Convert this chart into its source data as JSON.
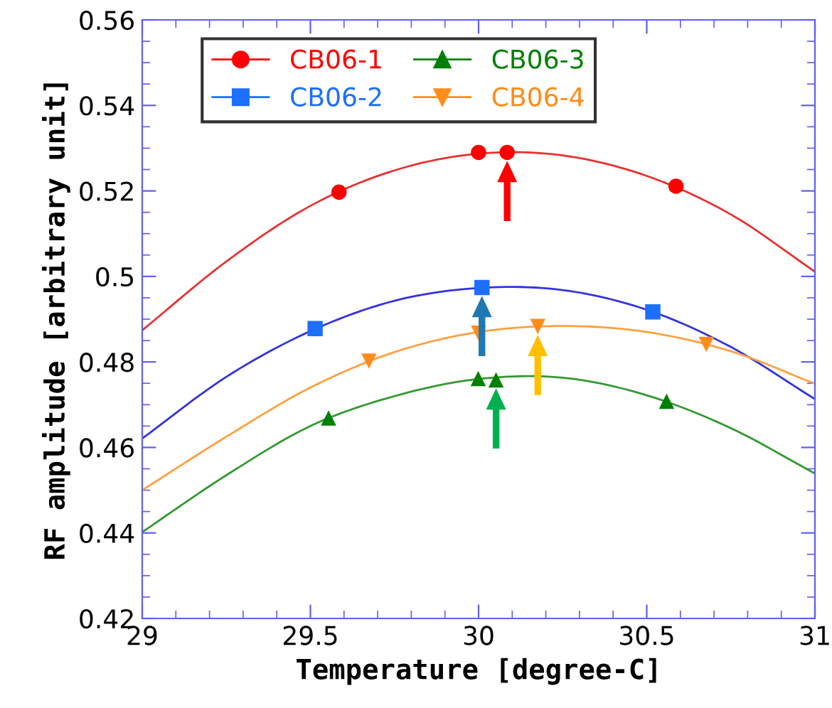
{
  "chart_data": {
    "type": "scatter",
    "xlabel": "Temperature [degree-C]",
    "ylabel": "RF amplitude [arbitrary unit]",
    "xlim": [
      29,
      31
    ],
    "xticks": [
      29,
      29.5,
      30,
      30.5,
      31
    ],
    "ylim": [
      0.42,
      0.56
    ],
    "yticks": [
      0.42,
      0.44,
      0.46,
      0.48,
      0.5,
      0.52,
      0.54,
      0.56
    ],
    "grid": false,
    "legend": "top left",
    "series": [
      {
        "name": "CB06-1",
        "color": "#ff0000",
        "marker": "circle",
        "x": [
          29.585,
          30.0,
          30.085,
          30.587
        ],
        "values": [
          0.5197,
          0.529,
          0.529,
          0.5211
        ]
      },
      {
        "name": "CB06-2",
        "color": "#1e6fff",
        "marker": "square",
        "x": [
          29.514,
          30.01,
          30.518
        ],
        "values": [
          0.4878,
          0.4974,
          0.4917
        ]
      },
      {
        "name": "CB06-3",
        "color": "#008000",
        "marker": "triangle",
        "x": [
          29.554,
          29.999,
          30.052,
          30.559
        ],
        "values": [
          0.4669,
          0.4761,
          0.4758,
          0.4708
        ]
      },
      {
        "name": "CB06-4",
        "color": "#ff8c1a",
        "marker": "triangle_down",
        "x": [
          29.674,
          30.0,
          30.176,
          30.677
        ],
        "values": [
          0.4802,
          0.4867,
          0.4883,
          0.4841
        ]
      },
      {
        "type": "line",
        "color": "#e83030",
        "x": [
          29,
          29.25,
          29.5,
          29.75,
          30,
          30.25,
          30.5,
          30.75,
          31
        ],
        "values": [
          0.4874,
          0.5035,
          0.5165,
          0.5248,
          0.5287,
          0.5283,
          0.5235,
          0.5145,
          0.5011
        ]
      },
      {
        "type": "line",
        "color": "#3333dd",
        "x": [
          29,
          29.25,
          29.5,
          29.75,
          30,
          30.25,
          30.5,
          30.75,
          31
        ],
        "values": [
          0.4621,
          0.4765,
          0.4872,
          0.4943,
          0.4973,
          0.4968,
          0.4922,
          0.4835,
          0.4713
        ]
      },
      {
        "type": "line",
        "color": "#339933",
        "x": [
          29,
          29.25,
          29.5,
          29.75,
          30,
          30.25,
          30.5,
          30.75,
          31
        ],
        "values": [
          0.4402,
          0.4535,
          0.465,
          0.472,
          0.476,
          0.4763,
          0.4722,
          0.4645,
          0.4539
        ]
      },
      {
        "type": "line",
        "color": "#ffa040",
        "x": [
          29,
          29.25,
          29.5,
          29.75,
          30,
          30.25,
          30.5,
          30.75,
          31
        ],
        "values": [
          0.45,
          0.4625,
          0.474,
          0.4823,
          0.487,
          0.4884,
          0.487,
          0.4825,
          0.4749
        ]
      }
    ]
  }
}
